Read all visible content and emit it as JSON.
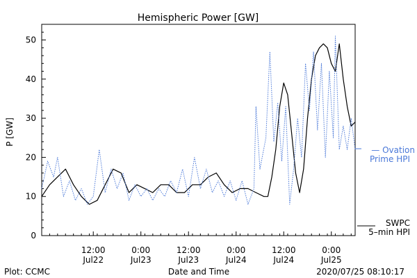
{
  "chart_data": {
    "type": "line",
    "title": "Hemispheric Power [GW]",
    "ylabel": "P [GW]",
    "xlabel": "Date and Time",
    "ylim": [
      0,
      54
    ],
    "yticks": [
      0,
      10,
      20,
      30,
      40,
      50
    ],
    "xlim": [
      "2020-07-21 23:00",
      "2020-07-25 06:00"
    ],
    "xticks": [
      {
        "t": "2020-07-22 12:00",
        "time": "12:00",
        "date": "Jul22"
      },
      {
        "t": "2020-07-23 00:00",
        "time": "0:00",
        "date": "Jul23"
      },
      {
        "t": "2020-07-23 12:00",
        "time": "12:00",
        "date": "Jul23"
      },
      {
        "t": "2020-07-24 00:00",
        "time": "0:00",
        "date": "Jul24"
      },
      {
        "t": "2020-07-24 12:00",
        "time": "12:00",
        "date": "Jul24"
      },
      {
        "t": "2020-07-25 00:00",
        "time": "0:00",
        "date": "Jul25"
      }
    ],
    "series": [
      {
        "name": "SWPC 5-min HPI",
        "style": "solid",
        "color": "#000000",
        "points": [
          [
            "2020-07-21 23:00",
            10
          ],
          [
            "2020-07-22 01:00",
            13
          ],
          [
            "2020-07-22 03:00",
            15
          ],
          [
            "2020-07-22 05:00",
            17
          ],
          [
            "2020-07-22 07:00",
            13
          ],
          [
            "2020-07-22 09:00",
            10
          ],
          [
            "2020-07-22 11:00",
            8
          ],
          [
            "2020-07-22 13:00",
            9
          ],
          [
            "2020-07-22 15:00",
            13
          ],
          [
            "2020-07-22 17:00",
            17
          ],
          [
            "2020-07-22 19:00",
            16
          ],
          [
            "2020-07-22 21:00",
            11
          ],
          [
            "2020-07-22 23:00",
            13
          ],
          [
            "2020-07-23 01:00",
            12
          ],
          [
            "2020-07-23 03:00",
            11
          ],
          [
            "2020-07-23 05:00",
            13
          ],
          [
            "2020-07-23 07:00",
            13
          ],
          [
            "2020-07-23 09:00",
            11
          ],
          [
            "2020-07-23 11:00",
            11
          ],
          [
            "2020-07-23 13:00",
            13
          ],
          [
            "2020-07-23 15:00",
            13
          ],
          [
            "2020-07-23 17:00",
            15
          ],
          [
            "2020-07-23 19:00",
            16
          ],
          [
            "2020-07-23 21:00",
            13
          ],
          [
            "2020-07-23 23:00",
            11
          ],
          [
            "2020-07-24 01:00",
            12
          ],
          [
            "2020-07-24 03:00",
            12
          ],
          [
            "2020-07-24 05:00",
            11
          ],
          [
            "2020-07-24 07:00",
            10
          ],
          [
            "2020-07-24 08:00",
            10
          ],
          [
            "2020-07-24 09:00",
            15
          ],
          [
            "2020-07-24 10:00",
            22
          ],
          [
            "2020-07-24 11:00",
            33
          ],
          [
            "2020-07-24 12:00",
            39
          ],
          [
            "2020-07-24 13:00",
            36
          ],
          [
            "2020-07-24 14:00",
            26
          ],
          [
            "2020-07-24 15:00",
            16
          ],
          [
            "2020-07-24 16:00",
            11
          ],
          [
            "2020-07-24 17:00",
            17
          ],
          [
            "2020-07-24 18:00",
            30
          ],
          [
            "2020-07-24 19:00",
            40
          ],
          [
            "2020-07-24 20:00",
            46
          ],
          [
            "2020-07-24 21:00",
            48
          ],
          [
            "2020-07-24 22:00",
            49
          ],
          [
            "2020-07-24 23:00",
            48
          ],
          [
            "2020-07-25 00:00",
            44
          ],
          [
            "2020-07-25 01:00",
            42
          ],
          [
            "2020-07-25 02:00",
            49
          ],
          [
            "2020-07-25 03:00",
            40
          ],
          [
            "2020-07-25 04:00",
            33
          ],
          [
            "2020-07-25 05:00",
            28
          ],
          [
            "2020-07-25 06:00",
            29
          ]
        ]
      },
      {
        "name": "Ovation Prime HPI",
        "style": "dotted",
        "color": "#4a78d8",
        "points": [
          [
            "2020-07-21 23:00",
            12
          ],
          [
            "2020-07-22 00:30",
            19
          ],
          [
            "2020-07-22 02:00",
            15
          ],
          [
            "2020-07-22 03:00",
            20
          ],
          [
            "2020-07-22 04:30",
            10
          ],
          [
            "2020-07-22 06:00",
            14
          ],
          [
            "2020-07-22 07:30",
            9
          ],
          [
            "2020-07-22 09:00",
            12
          ],
          [
            "2020-07-22 10:30",
            8
          ],
          [
            "2020-07-22 12:00",
            10
          ],
          [
            "2020-07-22 13:30",
            22
          ],
          [
            "2020-07-22 15:00",
            11
          ],
          [
            "2020-07-22 16:30",
            17
          ],
          [
            "2020-07-22 18:00",
            12
          ],
          [
            "2020-07-22 19:30",
            16
          ],
          [
            "2020-07-22 21:00",
            9
          ],
          [
            "2020-07-22 22:30",
            13
          ],
          [
            "2020-07-23 00:00",
            10
          ],
          [
            "2020-07-23 01:30",
            12
          ],
          [
            "2020-07-23 03:00",
            9
          ],
          [
            "2020-07-23 04:30",
            12
          ],
          [
            "2020-07-23 06:00",
            10
          ],
          [
            "2020-07-23 07:30",
            14
          ],
          [
            "2020-07-23 09:00",
            11
          ],
          [
            "2020-07-23 10:30",
            17
          ],
          [
            "2020-07-23 12:00",
            10
          ],
          [
            "2020-07-23 13:30",
            20
          ],
          [
            "2020-07-23 15:00",
            12
          ],
          [
            "2020-07-23 16:30",
            17
          ],
          [
            "2020-07-23 18:00",
            11
          ],
          [
            "2020-07-23 19:30",
            14
          ],
          [
            "2020-07-23 21:00",
            10
          ],
          [
            "2020-07-23 22:30",
            14
          ],
          [
            "2020-07-24 00:00",
            9
          ],
          [
            "2020-07-24 01:30",
            14
          ],
          [
            "2020-07-24 03:00",
            8
          ],
          [
            "2020-07-24 04:30",
            12
          ],
          [
            "2020-07-24 05:00",
            33
          ],
          [
            "2020-07-24 06:00",
            17
          ],
          [
            "2020-07-24 07:30",
            25
          ],
          [
            "2020-07-24 08:30",
            47
          ],
          [
            "2020-07-24 09:30",
            24
          ],
          [
            "2020-07-24 10:30",
            34
          ],
          [
            "2020-07-24 11:30",
            19
          ],
          [
            "2020-07-24 12:30",
            33
          ],
          [
            "2020-07-24 13:30",
            8
          ],
          [
            "2020-07-24 14:30",
            17
          ],
          [
            "2020-07-24 15:30",
            30
          ],
          [
            "2020-07-24 16:30",
            20
          ],
          [
            "2020-07-24 17:30",
            44
          ],
          [
            "2020-07-24 18:30",
            32
          ],
          [
            "2020-07-24 19:30",
            47
          ],
          [
            "2020-07-24 20:30",
            27
          ],
          [
            "2020-07-24 21:30",
            44
          ],
          [
            "2020-07-24 22:30",
            20
          ],
          [
            "2020-07-24 23:30",
            42
          ],
          [
            "2020-07-25 00:30",
            25
          ],
          [
            "2020-07-25 01:00",
            51
          ],
          [
            "2020-07-25 02:00",
            22
          ],
          [
            "2020-07-25 03:00",
            28
          ],
          [
            "2020-07-25 04:00",
            22
          ],
          [
            "2020-07-25 05:00",
            30
          ],
          [
            "2020-07-25 06:00",
            22
          ]
        ]
      }
    ],
    "legend": {
      "placement": "right",
      "ovation_lines": [
        "— Ovation",
        "Prime HPI"
      ],
      "swpc_lines": [
        "SWPC",
        "5–min HPI"
      ]
    },
    "footer": {
      "left": "Plot: CCMC",
      "right": "2020/07/25 08:10:17"
    },
    "grid": false
  }
}
